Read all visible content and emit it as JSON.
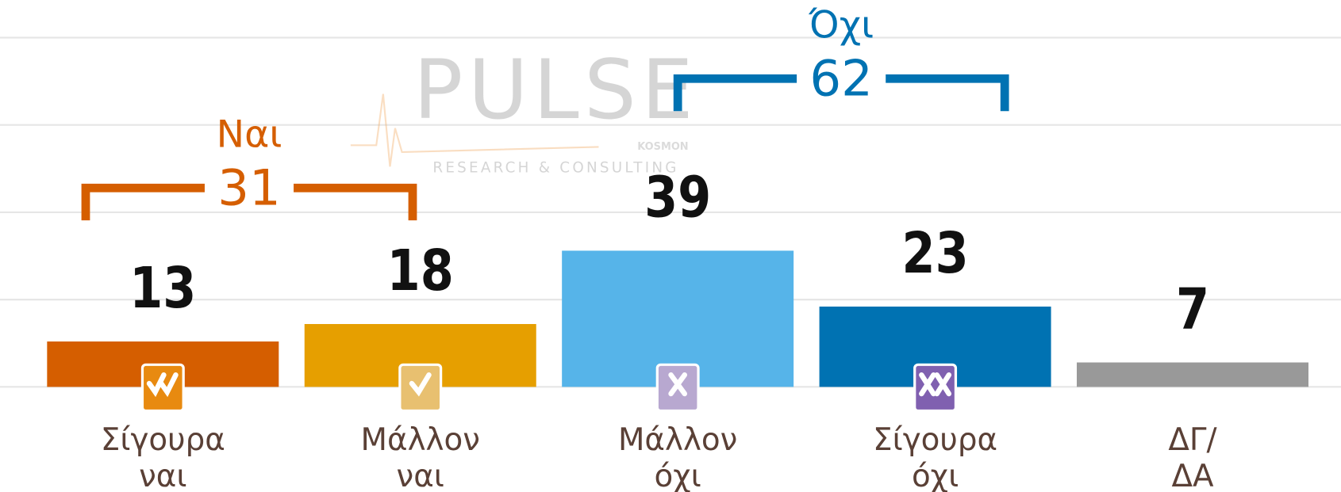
{
  "chart_data": {
    "type": "bar",
    "categories": [
      [
        "Σίγουρα",
        "ναι"
      ],
      [
        "Μάλλον",
        "ναι"
      ],
      [
        "Μάλλον",
        "όχι"
      ],
      [
        "Σίγουρα",
        "όχι"
      ],
      [
        "ΔΓ/",
        "ΔΑ"
      ]
    ],
    "values": [
      13,
      18,
      39,
      23,
      7
    ],
    "colors": [
      "#d55e00",
      "#e69f00",
      "#56b4e9",
      "#0072b2",
      "#999999"
    ],
    "ylim": [
      0,
      100
    ],
    "yticks": [
      0,
      25,
      50,
      75,
      100
    ],
    "grid": true,
    "groups": [
      {
        "label": "Ναι",
        "value": 31,
        "color": "#d55e00"
      },
      {
        "label": "Όχι",
        "value": 62,
        "color": "#0072b2"
      }
    ],
    "watermark": {
      "name": "PULSE",
      "tagline": "RESEARCH & CONSULTING",
      "partner": "KOSMON"
    }
  }
}
